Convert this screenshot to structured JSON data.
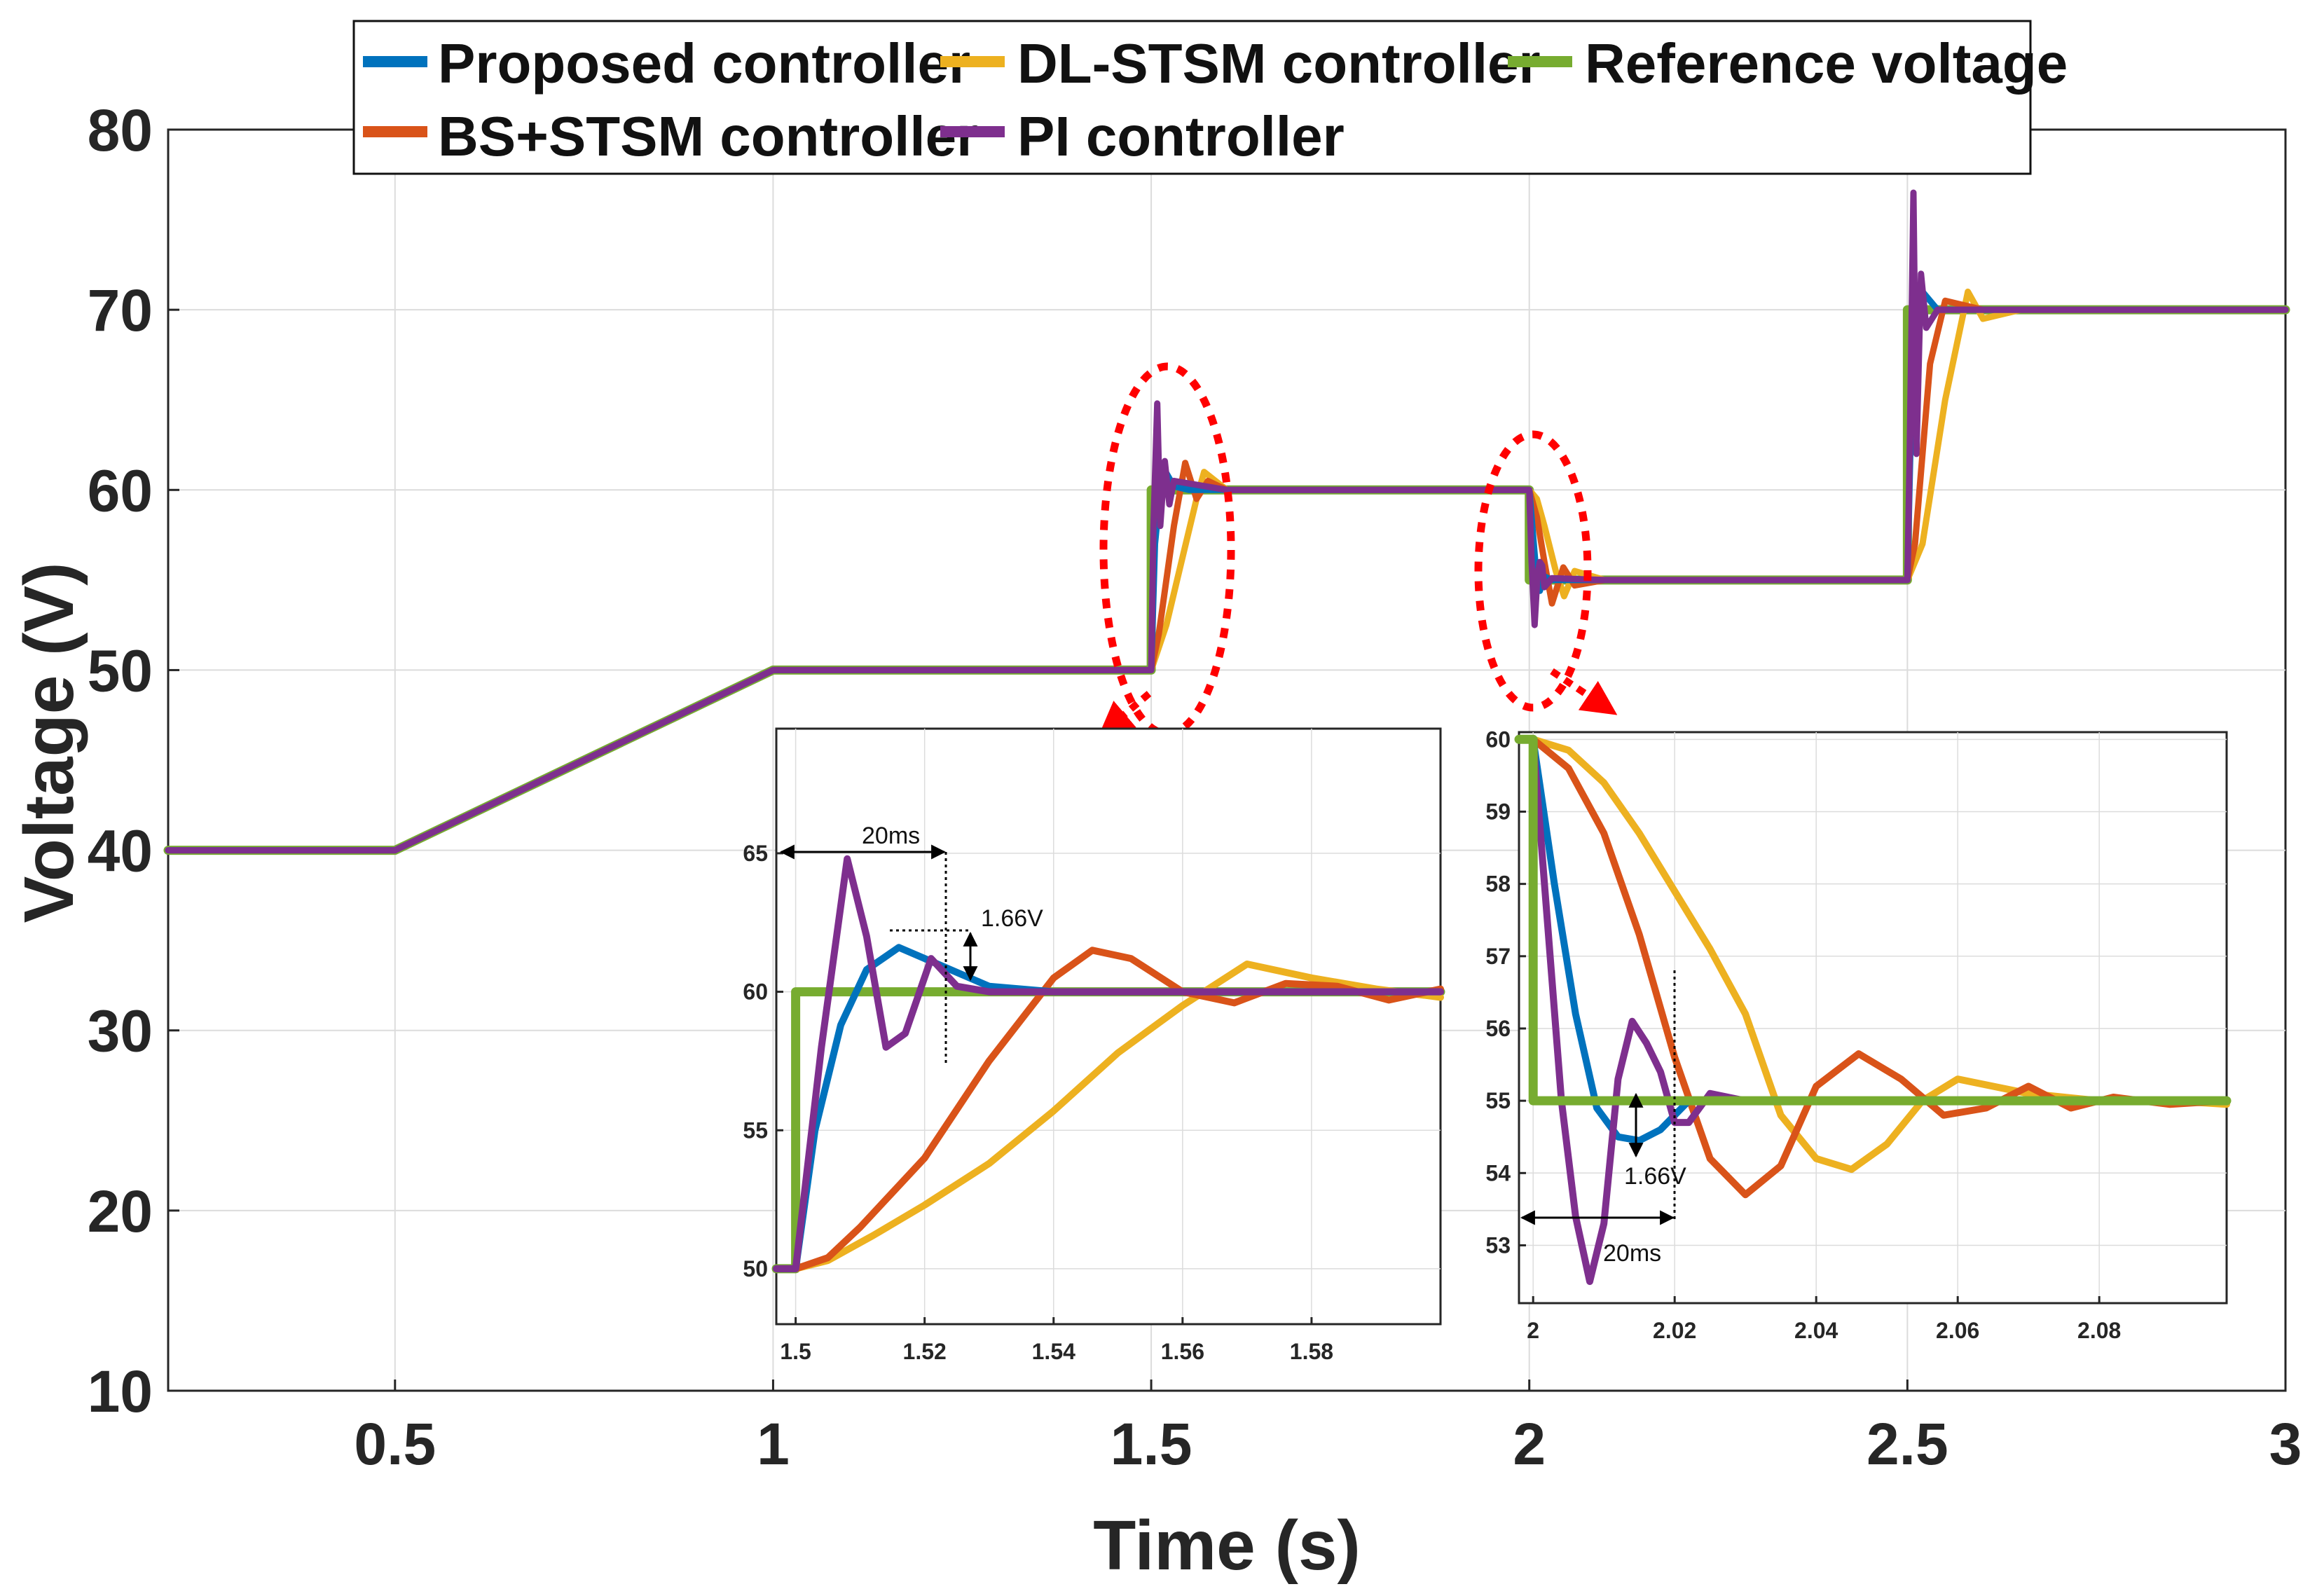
{
  "chart_data": [
    {
      "type": "line",
      "name": "main",
      "xlabel": "Time (s)",
      "ylabel": "Voltage (V)",
      "xlim": [
        0.2,
        3.0
      ],
      "ylim": [
        10,
        80
      ],
      "xticks": [
        0.5,
        1,
        1.5,
        2,
        2.5,
        3
      ],
      "xtick_labels": [
        "0.5",
        "1",
        "1.5",
        "2",
        "2.5",
        "3"
      ],
      "yticks": [
        10,
        20,
        30,
        40,
        50,
        60,
        70,
        80
      ],
      "ytick_labels": [
        "10",
        "20",
        "30",
        "40",
        "50",
        "60",
        "70",
        "80"
      ],
      "grid": true,
      "legend": {
        "position": "top",
        "entries": [
          {
            "label": "Proposed controller",
            "color": "#0072bd"
          },
          {
            "label": "DL-STSM controller",
            "color": "#edb120"
          },
          {
            "label": "Reference voltage",
            "color": "#77ac30"
          },
          {
            "label": "BS+STSM controller",
            "color": "#d95319"
          },
          {
            "label": "PI controller",
            "color": "#7e2f8e"
          }
        ]
      },
      "series": [
        {
          "name": "Reference voltage",
          "color": "#77ac30",
          "x": [
            0.2,
            0.5,
            1.0,
            1.5,
            1.5,
            2.0,
            2.0,
            2.5,
            2.5,
            3.0
          ],
          "y": [
            40,
            40,
            50,
            50,
            60,
            60,
            55,
            55,
            70,
            70
          ]
        },
        {
          "name": "DL-STSM controller",
          "color": "#edb120",
          "x": [
            0.2,
            0.5,
            1.0,
            1.5,
            1.52,
            1.54,
            1.56,
            1.57,
            1.6,
            2.0,
            2.01,
            2.02,
            2.035,
            2.046,
            2.06,
            2.1,
            2.5,
            2.52,
            2.55,
            2.58,
            2.6,
            2.65,
            3.0
          ],
          "y": [
            40,
            40,
            50,
            50,
            52.5,
            56,
            59.5,
            61,
            60,
            60,
            59.5,
            58,
            55.5,
            54.1,
            55.5,
            55,
            55,
            57,
            65,
            71,
            69.5,
            70,
            70
          ]
        },
        {
          "name": "BS+STSM controller",
          "color": "#d95319",
          "x": [
            0.2,
            0.5,
            1.0,
            1.5,
            1.51,
            1.53,
            1.545,
            1.56,
            1.575,
            1.6,
            2.0,
            2.01,
            2.02,
            2.03,
            2.045,
            2.06,
            2.1,
            2.5,
            2.51,
            2.53,
            2.55,
            2.6,
            3.0
          ],
          "y": [
            40,
            40,
            50,
            50,
            52,
            58,
            61.5,
            59.5,
            60.5,
            60,
            60,
            58.5,
            56,
            53.7,
            55.7,
            54.7,
            55,
            55,
            57,
            67,
            70.5,
            70,
            70
          ]
        },
        {
          "name": "Proposed controller",
          "color": "#0072bd",
          "x": [
            0.2,
            0.5,
            1.0,
            1.5,
            1.505,
            1.515,
            1.53,
            1.55,
            1.6,
            2.0,
            2.008,
            2.014,
            2.02,
            2.03,
            2.1,
            2.5,
            2.506,
            2.52,
            2.54,
            3.0
          ],
          "y": [
            40,
            40,
            50,
            50,
            57,
            61.3,
            60.2,
            60,
            60,
            60,
            56,
            54.4,
            55.2,
            55,
            55,
            55,
            66,
            71,
            70,
            70
          ]
        },
        {
          "name": "PI controller",
          "color": "#7e2f8e",
          "x": [
            0.2,
            0.5,
            1.0,
            1.5,
            1.503,
            1.508,
            1.512,
            1.518,
            1.524,
            1.53,
            1.6,
            2.0,
            2.003,
            2.007,
            2.011,
            2.014,
            2.017,
            2.02,
            2.03,
            2.1,
            2.5,
            2.503,
            2.508,
            2.512,
            2.518,
            2.525,
            2.54,
            3.0
          ],
          "y": [
            40,
            40,
            50,
            50,
            58,
            64.8,
            58,
            61.6,
            59.2,
            60.5,
            60,
            60,
            56,
            52.5,
            55.4,
            56,
            55.8,
            54.6,
            55.1,
            55,
            55,
            62,
            76.5,
            62,
            72,
            69,
            70,
            70
          ]
        }
      ],
      "highlights": [
        {
          "shape": "dashed-ellipse",
          "color": "#ff0000",
          "x": 1.51,
          "y": 56
        },
        {
          "shape": "dashed-ellipse",
          "color": "#ff0000",
          "x": 2.01,
          "y": 57
        }
      ]
    },
    {
      "type": "line",
      "name": "inset-rise",
      "xlim": [
        1.497,
        1.6
      ],
      "ylim": [
        48,
        69.5
      ],
      "xticks": [
        1.5,
        1.52,
        1.54,
        1.56,
        1.58
      ],
      "xtick_labels": [
        "1.5",
        "1.52",
        "1.54",
        "1.56",
        "1.58"
      ],
      "yticks": [
        50,
        55,
        60,
        65
      ],
      "ytick_labels": [
        "50",
        "55",
        "60",
        "65"
      ],
      "grid": true,
      "annotations": [
        {
          "text": "20ms",
          "x_from": 1.497,
          "x_to": 1.522,
          "y": 65.3
        },
        {
          "text": "1.66V",
          "x": 1.526,
          "y_from": 60,
          "y_to": 61.66
        }
      ],
      "series": [
        {
          "name": "Reference voltage",
          "color": "#77ac30",
          "x": [
            1.497,
            1.5,
            1.5,
            1.6
          ],
          "y": [
            50,
            50,
            60,
            60
          ]
        },
        {
          "name": "DL-STSM controller",
          "color": "#edb120",
          "x": [
            1.497,
            1.5,
            1.505,
            1.512,
            1.52,
            1.53,
            1.54,
            1.55,
            1.56,
            1.57,
            1.58,
            1.59,
            1.6
          ],
          "y": [
            50,
            50,
            50.3,
            51.2,
            52.3,
            53.8,
            55.7,
            57.8,
            59.5,
            61,
            60.5,
            60.1,
            59.8
          ]
        },
        {
          "name": "BS+STSM controller",
          "color": "#d95319",
          "x": [
            1.497,
            1.5,
            1.505,
            1.51,
            1.52,
            1.53,
            1.54,
            1.546,
            1.552,
            1.56,
            1.568,
            1.576,
            1.584,
            1.592,
            1.6
          ],
          "y": [
            50,
            50,
            50.4,
            51.5,
            54,
            57.5,
            60.5,
            61.5,
            61.2,
            60,
            59.6,
            60.3,
            60.2,
            59.7,
            60.1
          ]
        },
        {
          "name": "Proposed controller",
          "color": "#0072bd",
          "x": [
            1.497,
            1.5,
            1.503,
            1.507,
            1.511,
            1.516,
            1.522,
            1.53,
            1.54,
            1.55,
            1.6
          ],
          "y": [
            50,
            50,
            55,
            58.8,
            60.8,
            61.6,
            61,
            60.2,
            60,
            60,
            60
          ]
        },
        {
          "name": "PI controller",
          "color": "#7e2f8e",
          "x": [
            1.497,
            1.5,
            1.504,
            1.508,
            1.511,
            1.514,
            1.517,
            1.521,
            1.525,
            1.53,
            1.54,
            1.6
          ],
          "y": [
            50,
            50,
            58,
            64.8,
            62,
            58,
            58.5,
            61.2,
            60.2,
            60,
            60,
            60
          ]
        }
      ]
    },
    {
      "type": "line",
      "name": "inset-drop",
      "xlim": [
        1.998,
        2.098
      ],
      "ylim": [
        52.2,
        60.1
      ],
      "xticks": [
        2,
        2.02,
        2.04,
        2.06,
        2.08
      ],
      "xtick_labels": [
        "2",
        "2.02",
        "2.04",
        "2.06",
        "2.08"
      ],
      "yticks": [
        53,
        54,
        55,
        56,
        57,
        58,
        59,
        60
      ],
      "ytick_labels": [
        "53",
        "54",
        "55",
        "56",
        "57",
        "58",
        "59",
        "60"
      ],
      "grid": true,
      "annotations": [
        {
          "text": "20ms",
          "x_from": 1.998,
          "x_to": 2.02,
          "y": 53.45
        },
        {
          "text": "1.66V",
          "x": 2.014,
          "y_from": 54.4,
          "y_to": 55
        }
      ],
      "series": [
        {
          "name": "DL-STSM controller",
          "color": "#edb120",
          "x": [
            1.998,
            2.0,
            2.005,
            2.01,
            2.015,
            2.02,
            2.025,
            2.03,
            2.035,
            2.04,
            2.045,
            2.05,
            2.055,
            2.06,
            2.07,
            2.08,
            2.09,
            2.098
          ],
          "y": [
            60,
            60,
            59.85,
            59.4,
            58.7,
            57.9,
            57.1,
            56.2,
            54.8,
            54.2,
            54.05,
            54.4,
            55,
            55.3,
            55.1,
            55,
            55,
            54.95
          ]
        },
        {
          "name": "BS+STSM controller",
          "color": "#d95319",
          "x": [
            1.998,
            2.0,
            2.005,
            2.01,
            2.015,
            2.02,
            2.025,
            2.03,
            2.035,
            2.04,
            2.046,
            2.052,
            2.058,
            2.064,
            2.07,
            2.076,
            2.082,
            2.09,
            2.098
          ],
          "y": [
            60,
            60,
            59.6,
            58.7,
            57.3,
            55.6,
            54.2,
            53.7,
            54.1,
            55.2,
            55.65,
            55.3,
            54.8,
            54.9,
            55.2,
            54.9,
            55.05,
            54.95,
            55
          ]
        },
        {
          "name": "Proposed controller",
          "color": "#0072bd",
          "x": [
            1.998,
            2.0,
            2.003,
            2.006,
            2.009,
            2.012,
            2.015,
            2.018,
            2.022,
            2.03,
            2.098
          ],
          "y": [
            60,
            60,
            58,
            56.2,
            54.9,
            54.5,
            54.45,
            54.6,
            55,
            55,
            55
          ]
        },
        {
          "name": "PI controller",
          "color": "#7e2f8e",
          "x": [
            1.998,
            2.0,
            2.002,
            2.004,
            2.006,
            2.008,
            2.01,
            2.012,
            2.014,
            2.016,
            2.018,
            2.02,
            2.022,
            2.025,
            2.03,
            2.098
          ],
          "y": [
            60,
            60,
            57.5,
            55,
            53.4,
            52.5,
            53.3,
            55.3,
            56.1,
            55.8,
            55.4,
            54.7,
            54.7,
            55.1,
            55,
            55
          ]
        },
        {
          "name": "Reference voltage",
          "color": "#77ac30",
          "x": [
            1.998,
            2.0,
            2.0,
            2.098
          ],
          "y": [
            60,
            60,
            55,
            55
          ]
        }
      ]
    }
  ]
}
